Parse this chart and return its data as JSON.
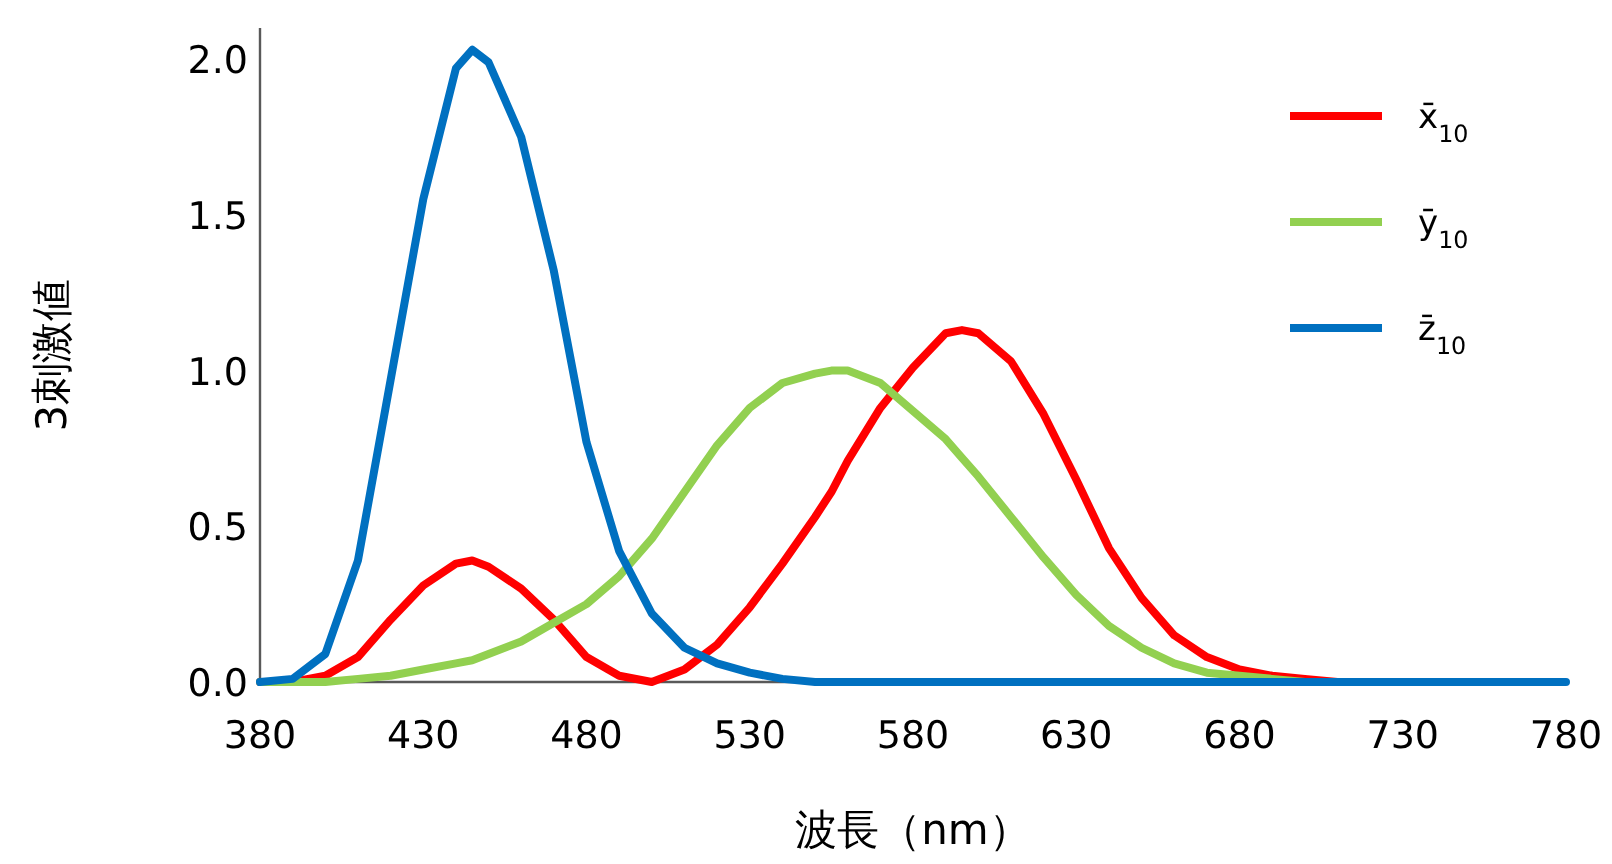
{
  "chart_data": {
    "type": "line",
    "xlabel": "波長（nm）",
    "ylabel": "3刺激値",
    "x": [
      380,
      390,
      400,
      410,
      420,
      430,
      440,
      445,
      450,
      460,
      470,
      480,
      490,
      500,
      510,
      520,
      530,
      540,
      550,
      555,
      560,
      570,
      580,
      590,
      595,
      600,
      610,
      620,
      630,
      640,
      650,
      660,
      670,
      680,
      690,
      700,
      710,
      720,
      730,
      740,
      750,
      760,
      770,
      780
    ],
    "series": [
      {
        "name": "x̄$_{10}$",
        "color": "#ff0000",
        "values": [
          0.0,
          0.0,
          0.02,
          0.08,
          0.2,
          0.31,
          0.38,
          0.39,
          0.37,
          0.3,
          0.2,
          0.08,
          0.02,
          0.0,
          0.04,
          0.12,
          0.24,
          0.38,
          0.53,
          0.61,
          0.71,
          0.88,
          1.01,
          1.12,
          1.13,
          1.12,
          1.03,
          0.86,
          0.65,
          0.43,
          0.27,
          0.15,
          0.08,
          0.04,
          0.02,
          0.01,
          0.0,
          0.0,
          null,
          null,
          null,
          null,
          null,
          null
        ]
      },
      {
        "name": "ȳ$_{10}$",
        "color": "#92d050",
        "values": [
          0.0,
          0.0,
          0.0,
          0.01,
          0.02,
          0.04,
          0.06,
          0.07,
          0.09,
          0.13,
          0.19,
          0.25,
          0.34,
          0.46,
          0.61,
          0.76,
          0.88,
          0.96,
          0.99,
          1.0,
          1.0,
          0.96,
          0.87,
          0.78,
          0.72,
          0.66,
          0.53,
          0.4,
          0.28,
          0.18,
          0.11,
          0.06,
          0.03,
          0.02,
          0.01,
          0.0,
          0.0,
          null,
          null,
          null,
          null,
          null,
          null,
          null
        ]
      },
      {
        "name": "z̄$_{10}$",
        "color": "#0070c0",
        "values": [
          0.0,
          0.01,
          0.09,
          0.39,
          0.97,
          1.55,
          1.97,
          2.03,
          1.99,
          1.75,
          1.32,
          0.77,
          0.42,
          0.22,
          0.11,
          0.06,
          0.03,
          0.01,
          0.0,
          0.0,
          0.0,
          0.0,
          0.0,
          0.0,
          0.0,
          0.0,
          0.0,
          0.0,
          0.0,
          0.0,
          0.0,
          0.0,
          0.0,
          0.0,
          0.0,
          0.0,
          0.0,
          0.0,
          0.0,
          0.0,
          0.0,
          0.0,
          0.0,
          0.0
        ]
      }
    ],
    "xlim": [
      380,
      780
    ],
    "xticks": [
      380,
      430,
      480,
      530,
      580,
      630,
      680,
      730,
      780
    ],
    "ylim": [
      0,
      2.1
    ],
    "yticks": [
      {
        "value": 0,
        "label": "0.0"
      },
      {
        "value": 0.5,
        "label": "0.5"
      },
      {
        "value": 1,
        "label": "1.0"
      },
      {
        "value": 1.5,
        "label": "1.5"
      },
      {
        "value": 2,
        "label": "2.0"
      }
    ],
    "legend": "top right",
    "marker": "none",
    "line_style": "solid",
    "grid": false
  }
}
